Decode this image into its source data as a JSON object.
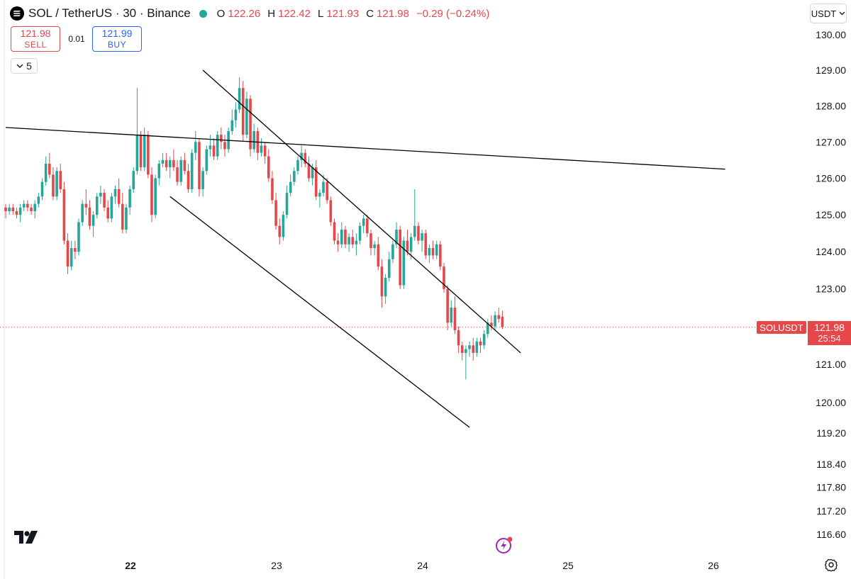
{
  "header": {
    "symbol": "SOL / TetherUS · 30 · Binance",
    "ohlc": [
      {
        "key": "O",
        "value": "122.26"
      },
      {
        "key": "H",
        "value": "122.42"
      },
      {
        "key": "L",
        "value": "121.93"
      },
      {
        "key": "C",
        "value": "121.98"
      },
      {
        "key": "",
        "value": "−0.29 (−0.24%)"
      }
    ]
  },
  "trade": {
    "sell_price": "121.98",
    "sell_label": "SELL",
    "spread": "0.01",
    "buy_price": "121.99",
    "buy_label": "BUY",
    "interval_count": "5"
  },
  "currency": "USDT",
  "last_price": {
    "symbol": "SOLUSDT",
    "price": "121.98",
    "countdown": "25:54"
  },
  "colors": {
    "up": "#26a69a",
    "down": "#e5474b",
    "line": "#000000",
    "text": "#131722"
  },
  "icons": [
    "tradingview-logo-icon",
    "flash-icon",
    "chevron-down-icon",
    "gear-icon"
  ],
  "chart_data": {
    "type": "candlestick",
    "title": "",
    "x_ticks": [
      "22",
      "23",
      "24",
      "25",
      "26"
    ],
    "y_ticks": [
      "130.00",
      "129.00",
      "128.00",
      "127.00",
      "126.00",
      "125.00",
      "124.00",
      "123.00",
      "121.00",
      "120.00",
      "119.20",
      "118.40",
      "117.80",
      "117.20",
      "116.60"
    ],
    "y_axis_scale": "log",
    "candles": [
      [
        125.2,
        125.3,
        124.9,
        125.1
      ],
      [
        125.1,
        125.3,
        125.0,
        125.2
      ],
      [
        125.2,
        125.3,
        125.0,
        125.1
      ],
      [
        125.1,
        125.2,
        124.9,
        125.0
      ],
      [
        125.0,
        125.3,
        124.8,
        125.2
      ],
      [
        125.2,
        125.4,
        125.1,
        125.3
      ],
      [
        125.3,
        125.4,
        125.1,
        125.2
      ],
      [
        125.2,
        125.3,
        125.0,
        125.1
      ],
      [
        125.1,
        125.4,
        124.9,
        125.3
      ],
      [
        125.3,
        125.6,
        125.2,
        125.5
      ],
      [
        125.5,
        126.0,
        125.4,
        125.9
      ],
      [
        125.9,
        126.6,
        125.8,
        126.4
      ],
      [
        126.4,
        126.7,
        126.0,
        126.1
      ],
      [
        126.1,
        126.3,
        125.4,
        125.5
      ],
      [
        125.5,
        126.3,
        125.4,
        126.2
      ],
      [
        126.2,
        126.4,
        125.6,
        125.7
      ],
      [
        125.7,
        125.9,
        124.2,
        124.3
      ],
      [
        124.3,
        124.5,
        123.4,
        123.6
      ],
      [
        123.6,
        124.3,
        123.5,
        124.1
      ],
      [
        124.1,
        124.3,
        123.8,
        124.0
      ],
      [
        124.0,
        124.9,
        123.9,
        124.8
      ],
      [
        124.8,
        125.4,
        124.7,
        125.3
      ],
      [
        125.3,
        125.7,
        125.0,
        125.2
      ],
      [
        125.2,
        125.4,
        124.6,
        124.7
      ],
      [
        124.7,
        125.1,
        124.4,
        125.0
      ],
      [
        125.0,
        125.6,
        124.9,
        125.5
      ],
      [
        125.5,
        125.8,
        125.3,
        125.6
      ],
      [
        125.6,
        125.7,
        125.1,
        125.2
      ],
      [
        125.2,
        125.4,
        124.8,
        124.9
      ],
      [
        124.9,
        125.6,
        124.8,
        125.5
      ],
      [
        125.5,
        125.8,
        125.3,
        125.7
      ],
      [
        125.7,
        126.0,
        125.2,
        125.3
      ],
      [
        125.3,
        125.6,
        124.5,
        124.6
      ],
      [
        124.6,
        125.3,
        124.5,
        125.2
      ],
      [
        125.2,
        125.8,
        125.0,
        125.7
      ],
      [
        125.7,
        126.3,
        125.6,
        126.2
      ],
      [
        126.2,
        128.5,
        126.1,
        127.2
      ],
      [
        127.2,
        127.3,
        126.2,
        126.3
      ],
      [
        126.3,
        127.4,
        126.2,
        127.2
      ],
      [
        127.2,
        127.3,
        126.0,
        126.1
      ],
      [
        126.1,
        126.3,
        124.8,
        125.0
      ],
      [
        125.0,
        126.1,
        124.9,
        126.0
      ],
      [
        126.0,
        126.5,
        125.8,
        126.4
      ],
      [
        126.4,
        126.7,
        126.3,
        126.5
      ],
      [
        126.5,
        126.7,
        126.2,
        126.3
      ],
      [
        126.3,
        126.6,
        126.0,
        126.5
      ],
      [
        126.5,
        126.8,
        126.2,
        126.3
      ],
      [
        126.3,
        126.5,
        125.8,
        125.9
      ],
      [
        125.9,
        126.6,
        125.8,
        126.5
      ],
      [
        126.5,
        126.7,
        126.1,
        126.2
      ],
      [
        126.2,
        126.4,
        125.6,
        125.7
      ],
      [
        125.7,
        126.8,
        125.6,
        126.7
      ],
      [
        126.7,
        127.3,
        126.5,
        127.0
      ],
      [
        127.0,
        127.1,
        125.5,
        125.7
      ],
      [
        125.7,
        126.3,
        125.5,
        126.2
      ],
      [
        126.2,
        126.9,
        126.1,
        126.8
      ],
      [
        126.8,
        127.2,
        126.6,
        126.9
      ],
      [
        126.9,
        127.1,
        126.5,
        126.6
      ],
      [
        126.6,
        127.3,
        126.5,
        127.2
      ],
      [
        127.2,
        127.4,
        126.8,
        127.0
      ],
      [
        127.0,
        127.2,
        126.6,
        126.8
      ],
      [
        126.8,
        127.4,
        126.7,
        127.3
      ],
      [
        127.3,
        127.9,
        127.2,
        127.6
      ],
      [
        127.6,
        128.1,
        127.4,
        127.9
      ],
      [
        127.9,
        128.8,
        127.8,
        128.5
      ],
      [
        128.5,
        128.7,
        127.0,
        127.2
      ],
      [
        127.2,
        128.4,
        127.1,
        128.2
      ],
      [
        128.2,
        128.3,
        126.6,
        126.8
      ],
      [
        126.8,
        127.5,
        126.7,
        127.3
      ],
      [
        127.3,
        127.4,
        126.5,
        126.7
      ],
      [
        126.7,
        127.1,
        126.6,
        126.9
      ],
      [
        126.9,
        127.0,
        126.4,
        126.6
      ],
      [
        126.6,
        126.8,
        125.9,
        126.0
      ],
      [
        126.0,
        126.2,
        125.3,
        125.4
      ],
      [
        125.4,
        125.6,
        124.6,
        124.7
      ],
      [
        124.7,
        124.9,
        124.2,
        124.4
      ],
      [
        124.4,
        125.1,
        124.3,
        125.0
      ],
      [
        125.0,
        125.8,
        124.9,
        125.6
      ],
      [
        125.6,
        126.1,
        125.5,
        125.9
      ],
      [
        125.9,
        126.3,
        125.8,
        126.2
      ],
      [
        126.2,
        126.6,
        126.1,
        126.5
      ],
      [
        126.5,
        126.9,
        126.3,
        126.7
      ],
      [
        126.7,
        126.8,
        126.3,
        126.4
      ],
      [
        126.4,
        126.6,
        125.9,
        126.0
      ],
      [
        126.0,
        126.4,
        125.8,
        126.3
      ],
      [
        126.3,
        126.5,
        125.4,
        125.5
      ],
      [
        125.5,
        125.7,
        125.2,
        125.6
      ],
      [
        125.6,
        126.1,
        125.5,
        125.9
      ],
      [
        125.9,
        126.0,
        125.3,
        125.4
      ],
      [
        125.4,
        125.5,
        124.7,
        124.8
      ],
      [
        124.8,
        124.9,
        124.2,
        124.3
      ],
      [
        124.3,
        124.5,
        124.0,
        124.2
      ],
      [
        124.2,
        124.8,
        124.1,
        124.6
      ],
      [
        124.6,
        124.7,
        124.1,
        124.2
      ],
      [
        124.2,
        124.5,
        124.0,
        124.4
      ],
      [
        124.4,
        124.6,
        124.1,
        124.2
      ],
      [
        124.2,
        124.5,
        123.9,
        124.3
      ],
      [
        124.3,
        124.8,
        124.2,
        124.7
      ],
      [
        124.7,
        125.0,
        124.5,
        124.9
      ],
      [
        124.9,
        125.0,
        124.4,
        124.5
      ],
      [
        124.5,
        124.6,
        123.9,
        124.1
      ],
      [
        124.1,
        124.3,
        123.9,
        124.2
      ],
      [
        124.2,
        124.4,
        123.5,
        123.6
      ],
      [
        123.6,
        123.8,
        122.5,
        122.8
      ],
      [
        122.8,
        123.4,
        122.6,
        123.3
      ],
      [
        123.3,
        124.0,
        123.2,
        123.8
      ],
      [
        123.8,
        124.3,
        123.7,
        124.2
      ],
      [
        124.2,
        124.8,
        124.1,
        124.6
      ],
      [
        124.6,
        124.7,
        123.0,
        123.1
      ],
      [
        123.1,
        124.4,
        123.0,
        124.3
      ],
      [
        124.3,
        124.6,
        123.9,
        124.0
      ],
      [
        124.0,
        124.5,
        123.8,
        124.4
      ],
      [
        124.4,
        125.7,
        124.3,
        124.7
      ],
      [
        124.7,
        124.8,
        124.2,
        124.3
      ],
      [
        124.3,
        124.6,
        124.0,
        124.5
      ],
      [
        124.5,
        124.6,
        123.8,
        123.9
      ],
      [
        123.9,
        124.2,
        123.7,
        124.1
      ],
      [
        124.1,
        124.3,
        123.8,
        123.9
      ],
      [
        123.9,
        124.3,
        123.8,
        124.2
      ],
      [
        124.2,
        124.3,
        123.5,
        123.6
      ],
      [
        123.6,
        123.7,
        122.9,
        123.0
      ],
      [
        123.0,
        123.1,
        121.9,
        122.1
      ],
      [
        122.1,
        122.7,
        122.0,
        122.5
      ],
      [
        122.5,
        122.8,
        121.8,
        121.9
      ],
      [
        121.9,
        122.0,
        121.3,
        121.5
      ],
      [
        121.5,
        121.6,
        121.1,
        121.3
      ],
      [
        121.3,
        121.5,
        120.6,
        121.4
      ],
      [
        121.4,
        121.6,
        121.2,
        121.5
      ],
      [
        121.5,
        121.7,
        121.1,
        121.3
      ],
      [
        121.3,
        121.7,
        121.2,
        121.6
      ],
      [
        121.6,
        121.7,
        121.3,
        121.5
      ],
      [
        121.5,
        121.9,
        121.4,
        121.8
      ],
      [
        121.8,
        122.2,
        121.7,
        122.1
      ],
      [
        122.1,
        122.3,
        121.9,
        122.0
      ],
      [
        122.0,
        122.4,
        121.9,
        122.3
      ],
      [
        122.3,
        122.5,
        122.1,
        122.2
      ],
      [
        122.26,
        122.42,
        121.93,
        121.98
      ]
    ],
    "trendlines": [
      {
        "x1": 0,
        "y1": 127.4,
        "x2": 197,
        "y2": 126.25
      },
      {
        "x1": 54,
        "y1": 129.0,
        "x2": 141,
        "y2": 121.3
      },
      {
        "x1": 45,
        "y1": 125.5,
        "x2": 127,
        "y2": 119.35
      }
    ],
    "last_price": 121.98
  }
}
